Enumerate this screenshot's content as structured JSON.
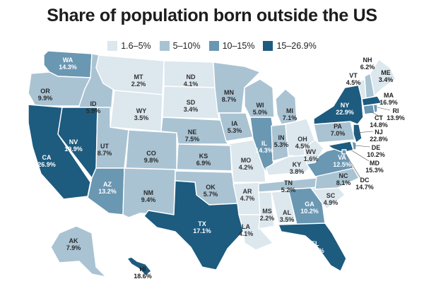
{
  "title": "Share of population born outside the US",
  "legend": [
    {
      "label": "1.6–5%",
      "color": "#dce7ee"
    },
    {
      "label": "5–10%",
      "color": "#a9c3d3"
    },
    {
      "label": "10–15%",
      "color": "#6a97b2"
    },
    {
      "label": "15–26.9%",
      "color": "#1d5b7f"
    }
  ],
  "states": [
    {
      "id": "WA",
      "value": "14.3%",
      "tier": 2
    },
    {
      "id": "OR",
      "value": "9.9%",
      "tier": 1
    },
    {
      "id": "CA",
      "value": "26.9%",
      "tier": 3
    },
    {
      "id": "ID",
      "value": "5.9%",
      "tier": 1
    },
    {
      "id": "NV",
      "value": "19.9%",
      "tier": 3
    },
    {
      "id": "MT",
      "value": "2.2%",
      "tier": 0
    },
    {
      "id": "WY",
      "value": "3.5%",
      "tier": 0
    },
    {
      "id": "UT",
      "value": "8.7%",
      "tier": 1
    },
    {
      "id": "AZ",
      "value": "13.2%",
      "tier": 2
    },
    {
      "id": "CO",
      "value": "9.8%",
      "tier": 1
    },
    {
      "id": "NM",
      "value": "9.4%",
      "tier": 1
    },
    {
      "id": "ND",
      "value": "4.1%",
      "tier": 0
    },
    {
      "id": "SD",
      "value": "3.4%",
      "tier": 0
    },
    {
      "id": "NE",
      "value": "7.5%",
      "tier": 1
    },
    {
      "id": "KS",
      "value": "6.9%",
      "tier": 1
    },
    {
      "id": "OK",
      "value": "5.7%",
      "tier": 1
    },
    {
      "id": "TX",
      "value": "17.1%",
      "tier": 3
    },
    {
      "id": "MN",
      "value": "8.7%",
      "tier": 1
    },
    {
      "id": "IA",
      "value": "5.3%",
      "tier": 1
    },
    {
      "id": "MO",
      "value": "4.2%",
      "tier": 0
    },
    {
      "id": "AR",
      "value": "4.7%",
      "tier": 0
    },
    {
      "id": "LA",
      "value": "4.1%",
      "tier": 0
    },
    {
      "id": "WI",
      "value": "5.0%",
      "tier": 1
    },
    {
      "id": "IL",
      "value": "14.3%",
      "tier": 2
    },
    {
      "id": "MI",
      "value": "7.1%",
      "tier": 1
    },
    {
      "id": "IN",
      "value": "5.3%",
      "tier": 1
    },
    {
      "id": "OH",
      "value": "4.5%",
      "tier": 0
    },
    {
      "id": "KY",
      "value": "3.8%",
      "tier": 0
    },
    {
      "id": "TN",
      "value": "5.2%",
      "tier": 1
    },
    {
      "id": "MS",
      "value": "2.2%",
      "tier": 0
    },
    {
      "id": "AL",
      "value": "3.5%",
      "tier": 0
    },
    {
      "id": "GA",
      "value": "10.2%",
      "tier": 2
    },
    {
      "id": "FL",
      "value": "20.9%",
      "tier": 3
    },
    {
      "id": "SC",
      "value": "4.9%",
      "tier": 0
    },
    {
      "id": "NC",
      "value": "8.1%",
      "tier": 1
    },
    {
      "id": "VA",
      "value": "12.5%",
      "tier": 2
    },
    {
      "id": "WV",
      "value": "1.6%",
      "tier": 0
    },
    {
      "id": "PA",
      "value": "7.0%",
      "tier": 1
    },
    {
      "id": "NY",
      "value": "22.9%",
      "tier": 3
    },
    {
      "id": "VT",
      "value": "4.5%",
      "tier": 0
    },
    {
      "id": "NH",
      "value": "6.2%",
      "tier": 1
    },
    {
      "id": "ME",
      "value": "3.4%",
      "tier": 0
    },
    {
      "id": "MA",
      "value": "16.9%",
      "tier": 3
    },
    {
      "id": "RI",
      "value": "13.9%",
      "tier": 2
    },
    {
      "id": "CT",
      "value": "14.8%",
      "tier": 2
    },
    {
      "id": "NJ",
      "value": "22.8%",
      "tier": 3
    },
    {
      "id": "DE",
      "value": "10.2%",
      "tier": 2
    },
    {
      "id": "MD",
      "value": "15.3%",
      "tier": 3
    },
    {
      "id": "DC",
      "value": "14.7%",
      "tier": 2
    },
    {
      "id": "AK",
      "value": "7.9%",
      "tier": 1
    },
    {
      "id": "HI",
      "value": "18.6%",
      "tier": 3
    }
  ]
}
